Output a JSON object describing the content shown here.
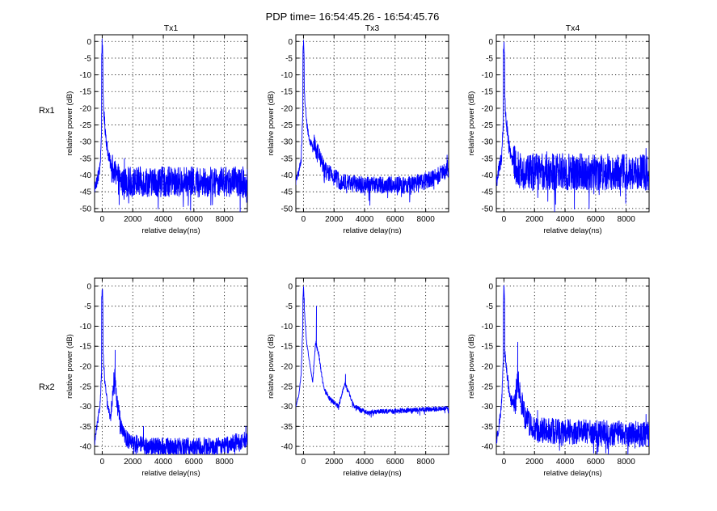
{
  "figure_title": "PDP time= 16:54:45.26 - 16:54:45.76",
  "row_labels": [
    "Rx1",
    "Rx2"
  ],
  "chart_data": [
    {
      "type": "line",
      "id": "rx1-tx1",
      "row": 0,
      "col": 0,
      "title": "Tx1",
      "xlabel": "relative delay(ns)",
      "ylabel": "relative power (dB)",
      "xlim": [
        -500,
        9500
      ],
      "ylim": [
        -51,
        2
      ],
      "xticks": [
        0,
        2000,
        4000,
        6000,
        8000
      ],
      "yticks": [
        0,
        -5,
        -10,
        -15,
        -20,
        -25,
        -30,
        -35,
        -40,
        -45,
        -50
      ],
      "grid": true,
      "trace": {
        "peak": [
          0,
          0
        ],
        "early": [
          [
            -500,
            -44
          ],
          [
            -300,
            -41
          ],
          [
            -150,
            -38
          ],
          [
            -50,
            -28
          ]
        ],
        "decay": [
          [
            60,
            -18
          ],
          [
            150,
            -24
          ],
          [
            300,
            -31
          ],
          [
            500,
            -36
          ],
          [
            800,
            -40
          ],
          [
            1200,
            -42
          ]
        ],
        "spikes": [
          [
            50,
            -13
          ],
          [
            1450,
            -35
          ],
          [
            2500,
            -38
          ],
          [
            3800,
            -39
          ]
        ],
        "floor": -45,
        "noise": 4.5
      },
      "series_color": "#0000ff"
    },
    {
      "type": "line",
      "id": "rx1-tx3",
      "row": 0,
      "col": 1,
      "title": "Tx3",
      "xlabel": "relative delay(ns)",
      "ylabel": "relative power (dB)",
      "xlim": [
        -500,
        9500
      ],
      "ylim": [
        -51,
        2
      ],
      "xticks": [
        0,
        2000,
        4000,
        6000,
        8000
      ],
      "yticks": [
        0,
        -5,
        -10,
        -15,
        -20,
        -25,
        -30,
        -35,
        -40,
        -45,
        -50
      ],
      "grid": true,
      "trace": {
        "peak": [
          0,
          0
        ],
        "early": [
          [
            -500,
            -42
          ],
          [
            -300,
            -39
          ],
          [
            -150,
            -35
          ],
          [
            -50,
            -22
          ]
        ],
        "decay": [
          [
            60,
            -16
          ],
          [
            200,
            -24
          ],
          [
            400,
            -30
          ],
          [
            700,
            -31
          ],
          [
            1000,
            -34
          ],
          [
            1500,
            -39
          ],
          [
            2500,
            -42
          ],
          [
            4000,
            -43
          ],
          [
            7000,
            -43
          ],
          [
            8500,
            -41
          ],
          [
            9500,
            -38
          ]
        ],
        "spikes": [
          [
            50,
            -14
          ],
          [
            700,
            -28
          ],
          [
            9400,
            -34
          ]
        ],
        "floor": -43,
        "noise": 2.6
      },
      "series_color": "#0000ff"
    },
    {
      "type": "line",
      "id": "rx1-tx4",
      "row": 0,
      "col": 2,
      "title": "Tx4",
      "xlabel": "relative delay(ns)",
      "ylabel": "relative power (dB)",
      "xlim": [
        -500,
        9500
      ],
      "ylim": [
        -51,
        2
      ],
      "xticks": [
        0,
        2000,
        4000,
        6000,
        8000
      ],
      "yticks": [
        0,
        -5,
        -10,
        -15,
        -20,
        -25,
        -30,
        -35,
        -40,
        -45,
        -50
      ],
      "grid": true,
      "trace": {
        "peak": [
          0,
          0
        ],
        "early": [
          [
            -500,
            -42
          ],
          [
            -300,
            -38
          ],
          [
            -150,
            -34
          ],
          [
            -50,
            -25
          ]
        ],
        "decay": [
          [
            60,
            -18
          ],
          [
            150,
            -24
          ],
          [
            300,
            -31
          ],
          [
            600,
            -36
          ],
          [
            1000,
            -39
          ]
        ],
        "spikes": [
          [
            50,
            -14
          ],
          [
            2800,
            -33
          ],
          [
            4500,
            -34
          ],
          [
            9300,
            -32
          ]
        ],
        "floor": -41,
        "noise": 5.5
      },
      "series_color": "#0000ff"
    },
    {
      "type": "line",
      "id": "rx2-tx1",
      "row": 1,
      "col": 0,
      "title": "",
      "xlabel": "relative delay(ns)",
      "ylabel": "relative power (dB)",
      "xlim": [
        -500,
        9500
      ],
      "ylim": [
        -42,
        2
      ],
      "xticks": [
        0,
        2000,
        4000,
        6000,
        8000
      ],
      "yticks": [
        0,
        -5,
        -10,
        -15,
        -20,
        -25,
        -30,
        -35,
        -40
      ],
      "grid": true,
      "trace": {
        "peak": [
          0,
          0
        ],
        "early": [
          [
            -500,
            -39
          ],
          [
            -300,
            -34
          ],
          [
            -150,
            -30
          ],
          [
            -50,
            -22
          ]
        ],
        "decay": [
          [
            60,
            -17
          ],
          [
            150,
            -23
          ],
          [
            350,
            -30
          ],
          [
            550,
            -33
          ],
          [
            800,
            -22
          ],
          [
            1000,
            -30
          ],
          [
            1300,
            -36
          ],
          [
            1800,
            -39
          ],
          [
            3000,
            -40
          ],
          [
            8000,
            -40
          ],
          [
            9500,
            -38
          ]
        ],
        "spikes": [
          [
            50,
            -12
          ],
          [
            850,
            -16
          ],
          [
            2700,
            -35
          ],
          [
            9400,
            -35
          ]
        ],
        "floor": -40,
        "noise": 2.2
      },
      "series_color": "#0000ff"
    },
    {
      "type": "line",
      "id": "rx2-tx3",
      "row": 1,
      "col": 1,
      "title": "",
      "xlabel": "relative delay(ns)",
      "ylabel": "relative power (dB)",
      "xlim": [
        -500,
        9500
      ],
      "ylim": [
        -42,
        2
      ],
      "xticks": [
        0,
        2000,
        4000,
        6000,
        8000
      ],
      "yticks": [
        0,
        -5,
        -10,
        -15,
        -20,
        -25,
        -30,
        -35,
        -40
      ],
      "grid": true,
      "trace": {
        "peak": [
          0,
          0
        ],
        "early": [
          [
            -500,
            -30
          ],
          [
            -300,
            -27
          ],
          [
            -150,
            -22
          ],
          [
            -50,
            -10
          ]
        ],
        "decay": [
          [
            60,
            -6
          ],
          [
            200,
            -14
          ],
          [
            400,
            -19
          ],
          [
            600,
            -24
          ],
          [
            800,
            -14
          ],
          [
            1000,
            -17
          ],
          [
            1300,
            -25
          ],
          [
            1700,
            -28
          ],
          [
            2300,
            -30
          ],
          [
            2700,
            -24
          ],
          [
            3000,
            -27
          ],
          [
            3300,
            -30
          ],
          [
            3800,
            -31
          ],
          [
            4200,
            -31.5
          ],
          [
            9500,
            -30.5
          ]
        ],
        "spikes": [
          [
            50,
            -3
          ],
          [
            850,
            -5
          ],
          [
            2750,
            -22
          ]
        ],
        "floor": -31.5,
        "noise": 0.6
      },
      "series_color": "#0000ff"
    },
    {
      "type": "line",
      "id": "rx2-tx4",
      "row": 1,
      "col": 2,
      "title": "",
      "xlabel": "relative delay(ns)",
      "ylabel": "relative power (dB)",
      "xlim": [
        -500,
        9500
      ],
      "ylim": [
        -42,
        2
      ],
      "xticks": [
        0,
        2000,
        4000,
        6000,
        8000
      ],
      "yticks": [
        0,
        -5,
        -10,
        -15,
        -20,
        -25,
        -30,
        -35,
        -40
      ],
      "grid": true,
      "trace": {
        "peak": [
          0,
          0
        ],
        "early": [
          [
            -500,
            -39
          ],
          [
            -300,
            -34
          ],
          [
            -150,
            -29
          ],
          [
            -50,
            -20
          ]
        ],
        "decay": [
          [
            60,
            -17
          ],
          [
            200,
            -22
          ],
          [
            400,
            -28
          ],
          [
            700,
            -30
          ],
          [
            900,
            -23
          ],
          [
            1100,
            -28
          ],
          [
            1400,
            -33
          ],
          [
            2000,
            -36
          ],
          [
            9500,
            -37
          ]
        ],
        "spikes": [
          [
            50,
            -12
          ],
          [
            900,
            -14
          ],
          [
            2200,
            -31
          ],
          [
            9300,
            -32
          ]
        ],
        "floor": -37,
        "noise": 3.2
      },
      "series_color": "#0000ff"
    }
  ]
}
